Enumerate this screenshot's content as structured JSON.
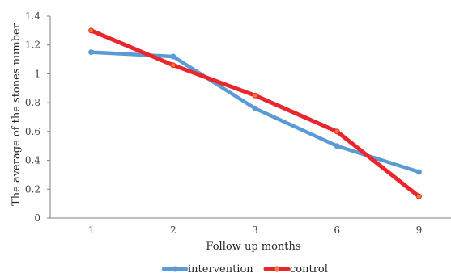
{
  "chart_data": {
    "type": "line",
    "title": "",
    "xlabel": "Follow up  months",
    "ylabel": "The average of the stones number",
    "categories": [
      "1",
      "2",
      "3",
      "6",
      "9"
    ],
    "ylim": [
      0,
      1.4
    ],
    "yticks": [
      "0",
      "0.2",
      "0.4",
      "0.6",
      "0.8",
      "1",
      "1.2",
      "1.4"
    ],
    "grid": false,
    "legend_position": "bottom",
    "series": [
      {
        "name": "intervention",
        "values": [
          1.15,
          1.12,
          0.76,
          0.5,
          0.32
        ],
        "color": "#5b9bd5",
        "marker_color": "#5b9bd5"
      },
      {
        "name": "control",
        "values": [
          1.3,
          1.06,
          0.85,
          0.6,
          0.15
        ],
        "color": "#e8262b",
        "marker_color": "#ed7d31"
      }
    ]
  }
}
